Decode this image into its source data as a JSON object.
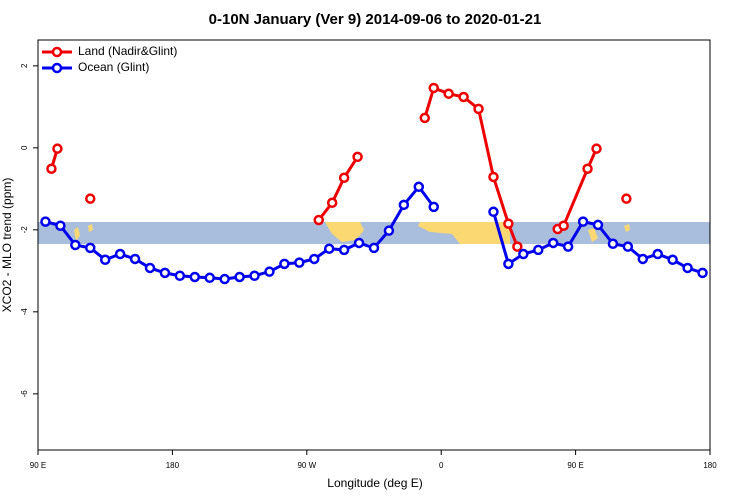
{
  "chart_data": {
    "type": "line",
    "title": "0-10N January (Ver 9)   2014-09-06 to 2020-01-21",
    "x_label": "Longitude (deg E)",
    "y_label": "XCO2 - MLO trend (ppm)",
    "xlim": [
      90,
      540
    ],
    "ylim": [
      -7.37,
      2.63
    ],
    "xticks": [
      {
        "value": 90,
        "label": "90 E"
      },
      180,
      {
        "value": 270,
        "label": "90 W"
      },
      {
        "value": 360,
        "label": "0"
      },
      {
        "value": 450,
        "label": "90 E"
      },
      {
        "value": 540,
        "label": "180"
      }
    ],
    "yticks": [
      2,
      0,
      -2,
      -4,
      -6
    ],
    "legend": "top-left",
    "series": [
      {
        "name": "Land (Nadir&Glint)",
        "color": "#ee0000",
        "x": [
          99,
          103,
          null,
          125,
          null,
          278,
          287,
          295,
          304,
          null,
          349,
          355,
          365,
          375,
          385,
          395,
          405,
          411,
          null,
          438,
          442,
          458,
          464,
          null,
          484
        ],
        "values": [
          -0.51,
          -0.02,
          null,
          -1.24,
          null,
          -1.76,
          -1.34,
          -0.73,
          -0.22,
          null,
          0.73,
          1.46,
          1.32,
          1.24,
          0.95,
          -0.71,
          -1.85,
          -2.41,
          null,
          -1.98,
          -1.9,
          -0.51,
          -0.02,
          null,
          -1.24
        ]
      },
      {
        "name": "Ocean (Glint)",
        "color": "#0000ee",
        "x": [
          95,
          105,
          115,
          125,
          135,
          145,
          155,
          165,
          175,
          185,
          195,
          205,
          215,
          225,
          235,
          245,
          255,
          265,
          275,
          285,
          295,
          305,
          315,
          325,
          335,
          345,
          355,
          null,
          395,
          405,
          415,
          425,
          435,
          445,
          455,
          465,
          475,
          485,
          495,
          505,
          515,
          525,
          535
        ],
        "values": [
          -1.8,
          -1.9,
          -2.37,
          -2.44,
          -2.73,
          -2.59,
          -2.71,
          -2.93,
          -3.05,
          -3.12,
          -3.15,
          -3.17,
          -3.2,
          -3.15,
          -3.12,
          -3.02,
          -2.83,
          -2.8,
          -2.71,
          -2.46,
          -2.49,
          -2.32,
          -2.44,
          -2.02,
          -1.39,
          -0.95,
          -1.44,
          null,
          -1.56,
          -2.83,
          -2.59,
          -2.49,
          -2.32,
          -2.41,
          -1.8,
          -1.88,
          -2.34,
          -2.41,
          -2.71,
          -2.59,
          -2.73,
          -2.93,
          -3.05
        ]
      }
    ]
  }
}
